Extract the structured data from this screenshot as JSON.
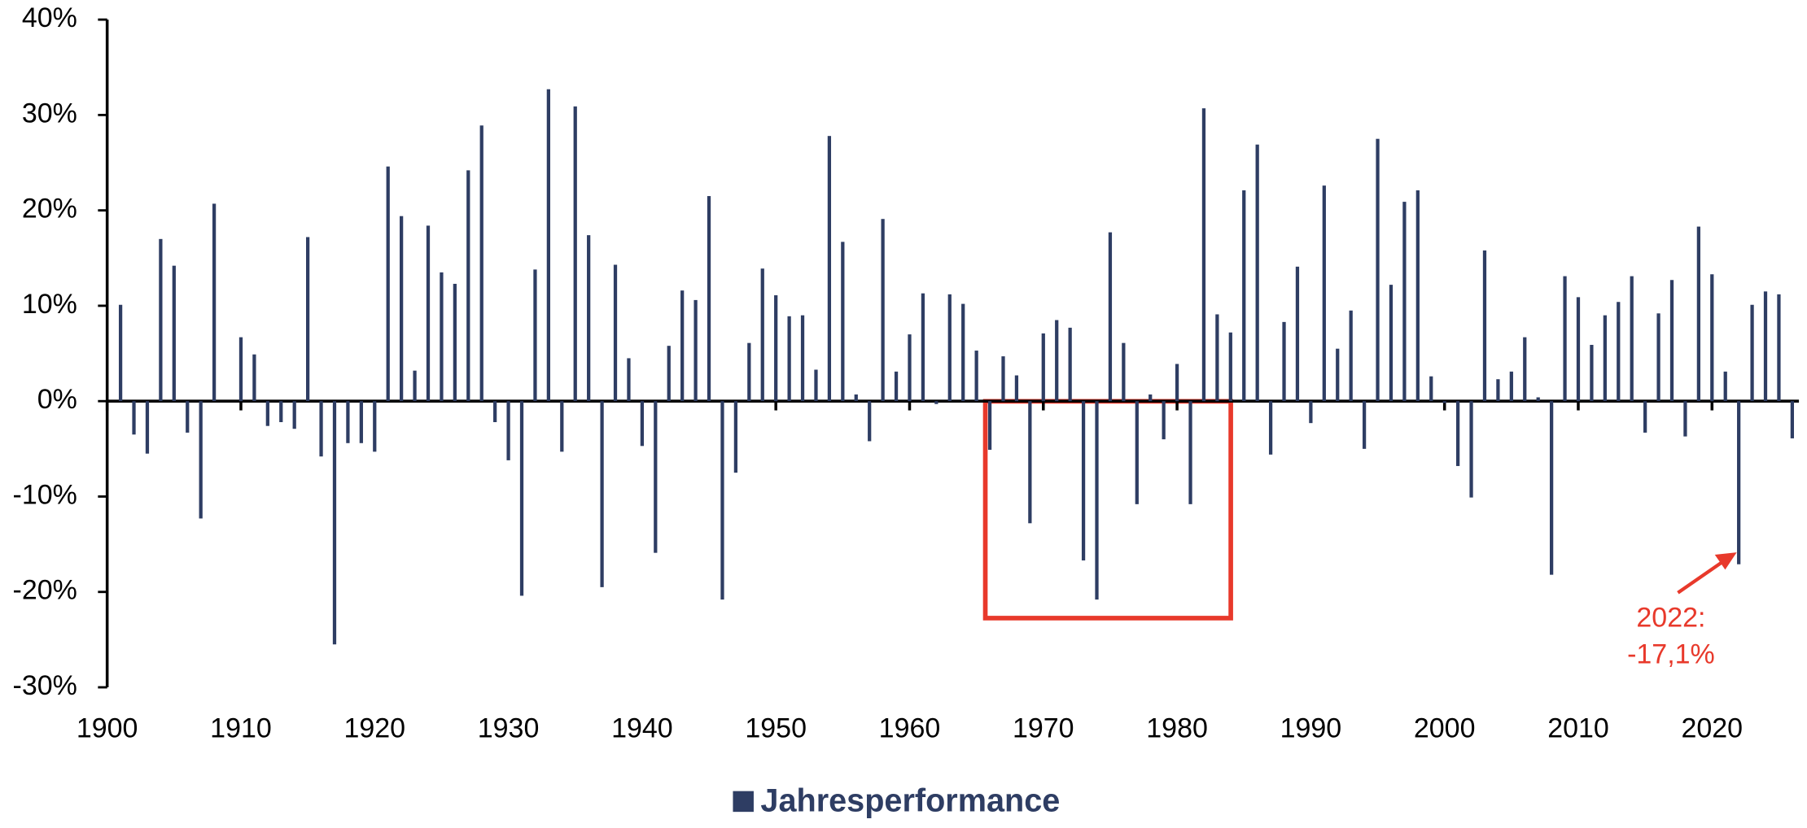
{
  "chart_data": {
    "type": "bar",
    "x": [
      1901,
      1902,
      1903,
      1904,
      1905,
      1906,
      1907,
      1908,
      1909,
      1910,
      1911,
      1912,
      1913,
      1914,
      1915,
      1916,
      1917,
      1918,
      1919,
      1920,
      1921,
      1922,
      1923,
      1924,
      1925,
      1926,
      1927,
      1928,
      1929,
      1930,
      1931,
      1932,
      1933,
      1934,
      1935,
      1936,
      1937,
      1938,
      1939,
      1940,
      1941,
      1942,
      1943,
      1944,
      1945,
      1946,
      1947,
      1948,
      1949,
      1950,
      1951,
      1952,
      1953,
      1954,
      1955,
      1956,
      1957,
      1958,
      1959,
      1960,
      1961,
      1962,
      1963,
      1964,
      1965,
      1966,
      1967,
      1968,
      1969,
      1970,
      1971,
      1972,
      1973,
      1974,
      1975,
      1976,
      1977,
      1978,
      1979,
      1980,
      1981,
      1982,
      1983,
      1984,
      1985,
      1986,
      1987,
      1988,
      1989,
      1990,
      1991,
      1992,
      1993,
      1994,
      1995,
      1996,
      1997,
      1998,
      1999,
      2000,
      2001,
      2002,
      2003,
      2004,
      2005,
      2006,
      2007,
      2008,
      2009,
      2010,
      2011,
      2012,
      2013,
      2014,
      2015,
      2016,
      2017,
      2018,
      2019,
      2020,
      2021,
      2022,
      2023,
      2024,
      2025,
      2026
    ],
    "series": [
      {
        "name": "Jahresperformance",
        "color": "#2e3d63",
        "values": [
          10.1,
          -3.5,
          -5.5,
          17,
          14.2,
          -3.3,
          -12.3,
          20.7,
          0,
          6.7,
          4.9,
          -2.6,
          -2.2,
          -2.9,
          17.2,
          -5.8,
          -25.5,
          -4.4,
          -4.4,
          -5.3,
          24.6,
          19.4,
          3.2,
          18.4,
          13.5,
          12.3,
          24.2,
          28.9,
          -2.2,
          -6.2,
          -20.4,
          13.8,
          32.7,
          -5.3,
          30.9,
          17.4,
          -19.5,
          14.3,
          4.5,
          -4.7,
          -15.9,
          5.8,
          11.6,
          10.6,
          21.5,
          -20.8,
          -7.5,
          6.1,
          13.9,
          11.1,
          8.9,
          9,
          3.3,
          27.8,
          16.7,
          0.7,
          -4.2,
          19.1,
          3.1,
          7,
          11.3,
          -0.3,
          11.2,
          10.2,
          5.3,
          -5.1,
          4.7,
          2.7,
          -12.8,
          7.1,
          8.5,
          7.7,
          -16.7,
          -20.8,
          17.7,
          6.1,
          -10.8,
          0.7,
          -4,
          3.9,
          -10.8,
          30.7,
          9.1,
          7.2,
          22.1,
          26.9,
          -5.6,
          8.3,
          14.1,
          -2.3,
          22.6,
          5.5,
          9.5,
          -5,
          27.5,
          12.2,
          20.9,
          22.1,
          2.6,
          -0.2,
          -6.8,
          -10.1,
          15.8,
          2.3,
          3.1,
          6.7,
          0.4,
          -18.2,
          13.1,
          10.9,
          5.9,
          9,
          10.4,
          13.1,
          -3.3,
          9.2,
          12.7,
          -3.7,
          18.3,
          13.3,
          3.1,
          -17.1,
          10.1,
          11.5,
          11.2,
          -3.9
        ]
      }
    ],
    "xlim": [
      1900,
      2026.5
    ],
    "xticks": [
      1900,
      1910,
      1920,
      1930,
      1940,
      1950,
      1960,
      1970,
      1980,
      1990,
      2000,
      2010,
      2020
    ],
    "ylim": [
      -30,
      40
    ],
    "yticks": [
      {
        "value": -30,
        "label": "-30%"
      },
      {
        "value": -20,
        "label": "-20%"
      },
      {
        "value": -10,
        "label": "-10%"
      },
      {
        "value": 0,
        "label": "0%"
      },
      {
        "value": 10,
        "label": "10%"
      },
      {
        "value": 20,
        "label": "20%"
      },
      {
        "value": 30,
        "label": "30%"
      },
      {
        "value": 40,
        "label": "40%"
      }
    ],
    "annotation": [
      "2022:",
      "-17,1%"
    ]
  }
}
